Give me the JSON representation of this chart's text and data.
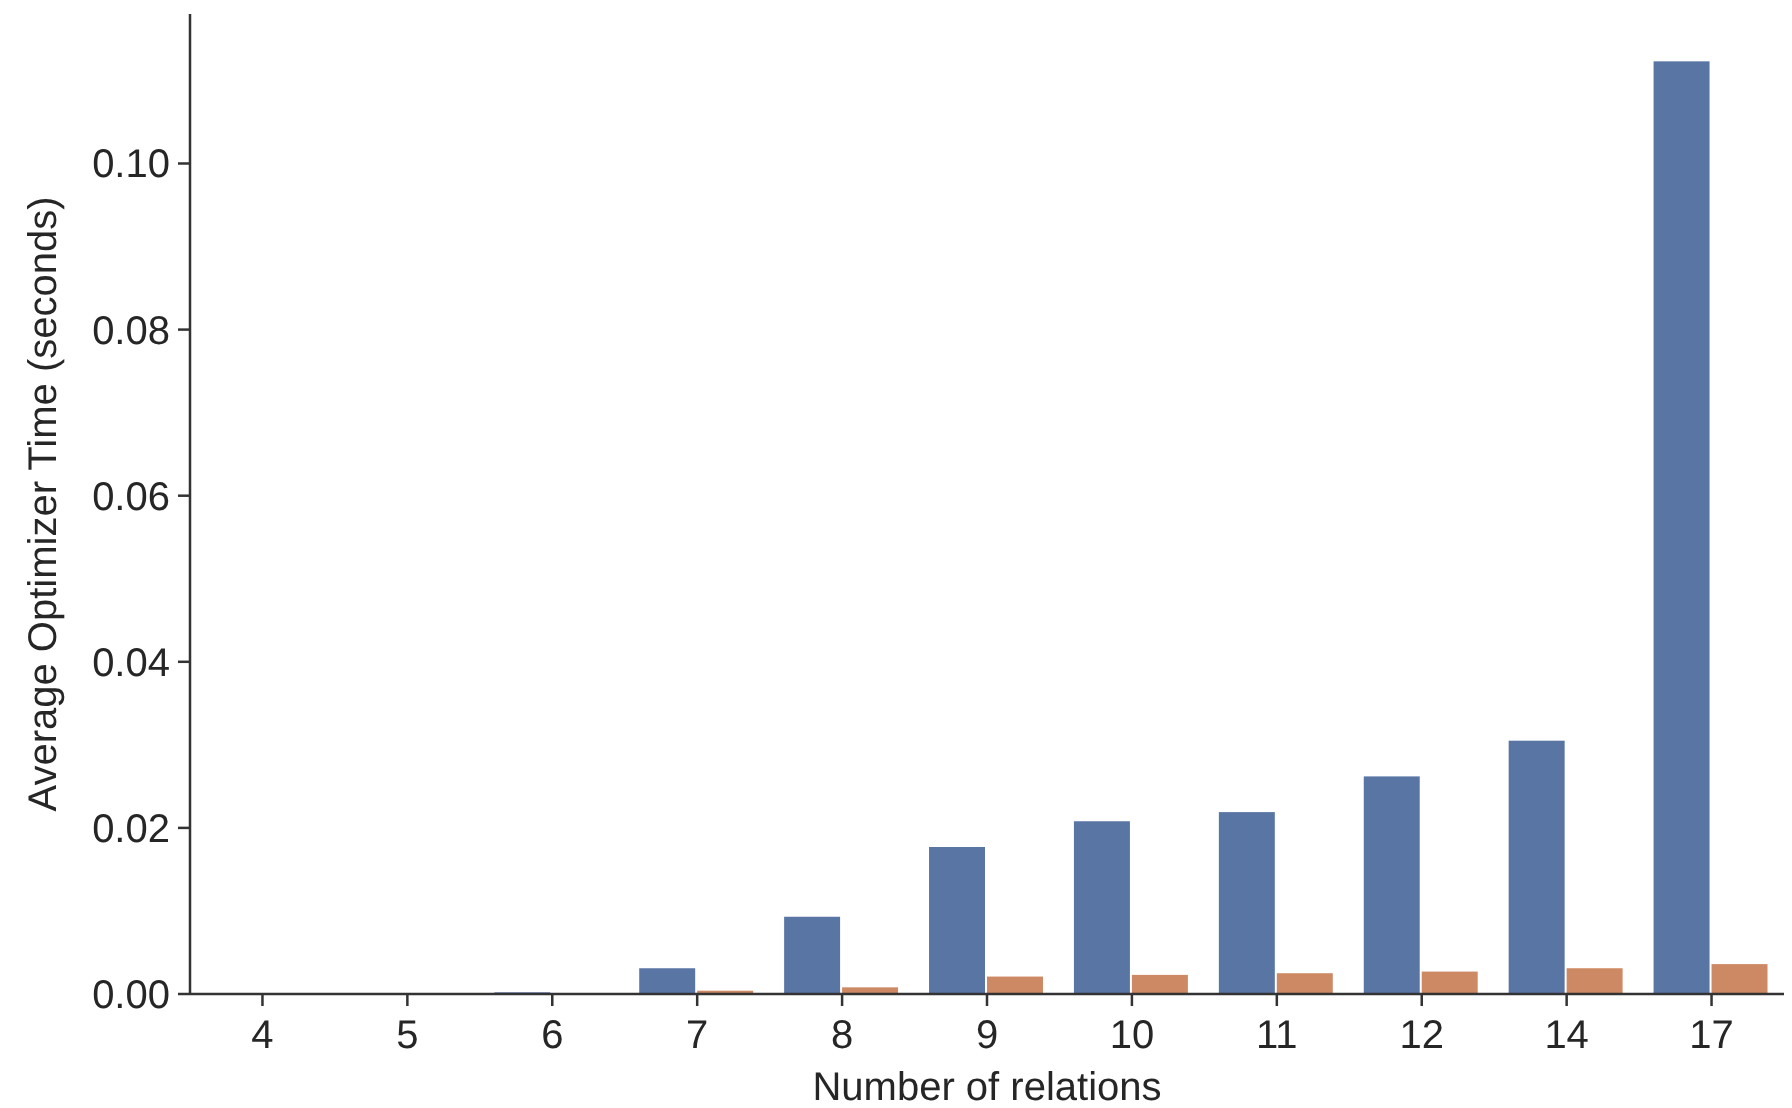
{
  "chart_data": {
    "type": "bar",
    "xlabel": "Number of relations",
    "ylabel": "Average Optimizer Time (seconds)",
    "categories": [
      "4",
      "5",
      "6",
      "7",
      "8",
      "9",
      "10",
      "11",
      "12",
      "14",
      "17"
    ],
    "series": [
      {
        "color": "#5875a4",
        "values": [
          0,
          0,
          0.0002,
          0.0031,
          0.0093,
          0.0177,
          0.0208,
          0.0219,
          0.0262,
          0.0305,
          0.1123
        ]
      },
      {
        "color": "#cc8963",
        "values": [
          0,
          0,
          0,
          0.0004,
          0.0008,
          0.0021,
          0.0023,
          0.0025,
          0.0027,
          0.0031,
          0.0036
        ]
      }
    ],
    "ylim": [
      0,
      0.118
    ],
    "yticks": [
      {
        "value": 0,
        "label": "0.00"
      },
      {
        "value": 0.02,
        "label": "0.02"
      },
      {
        "value": 0.04,
        "label": "0.04"
      },
      {
        "value": 0.06,
        "label": "0.06"
      },
      {
        "value": 0.08,
        "label": "0.08"
      },
      {
        "value": 0.1,
        "label": "0.10"
      }
    ],
    "grid": false
  }
}
